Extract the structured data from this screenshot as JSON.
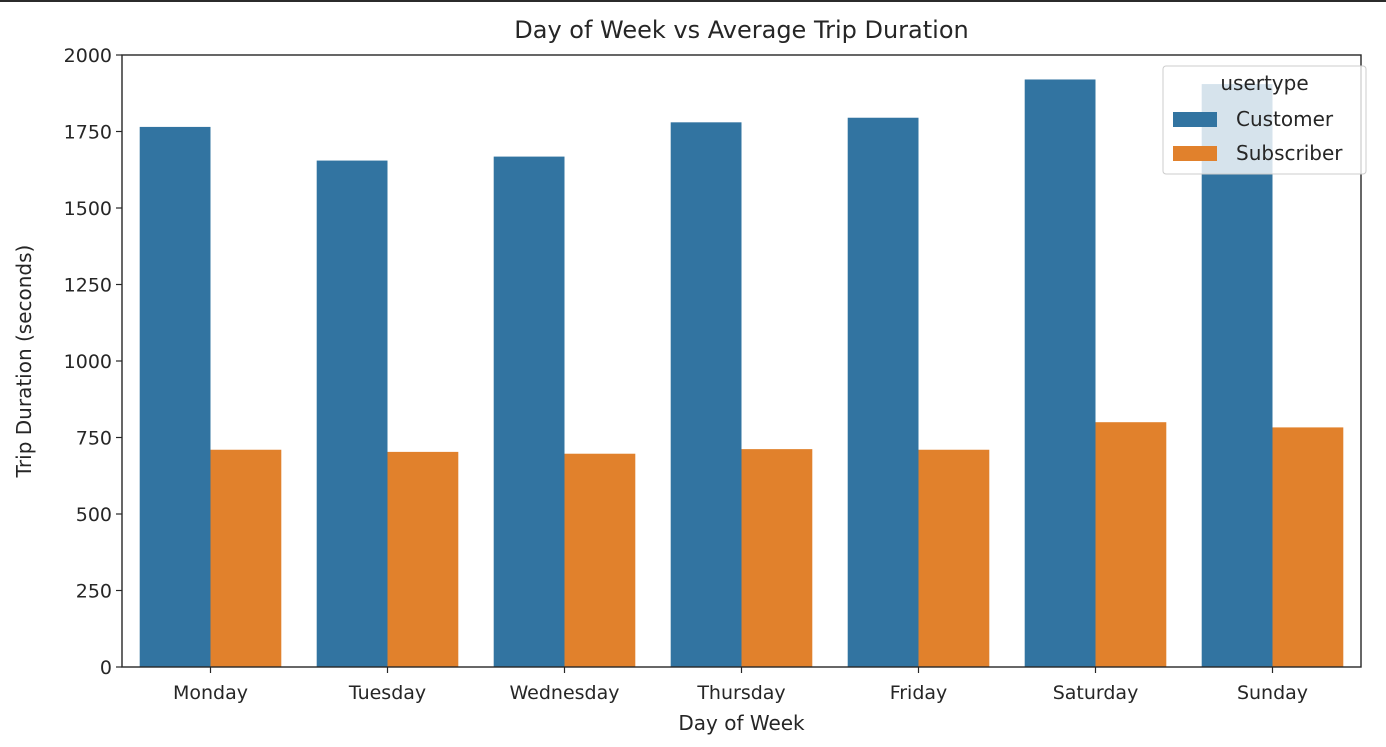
{
  "chart_data": {
    "type": "bar",
    "title": "Day of Week vs Average Trip Duration",
    "xlabel": "Day of Week",
    "ylabel": "Trip Duration (seconds)",
    "categories": [
      "Monday",
      "Tuesday",
      "Wednesday",
      "Thursday",
      "Friday",
      "Saturday",
      "Sunday"
    ],
    "series": [
      {
        "name": "Customer",
        "color": "#3274a1",
        "values": [
          1765,
          1655,
          1668,
          1780,
          1795,
          1920,
          1905
        ]
      },
      {
        "name": "Subscriber",
        "color": "#e1812c",
        "values": [
          710,
          703,
          697,
          712,
          710,
          800,
          783
        ]
      }
    ],
    "ylim": [
      0,
      2000
    ],
    "yticks": [
      "0",
      "250",
      "500",
      "750",
      "1000",
      "1250",
      "1500",
      "1750",
      "2000"
    ],
    "grid": false,
    "legend": {
      "title": "usertype",
      "placement": "top-right"
    }
  }
}
